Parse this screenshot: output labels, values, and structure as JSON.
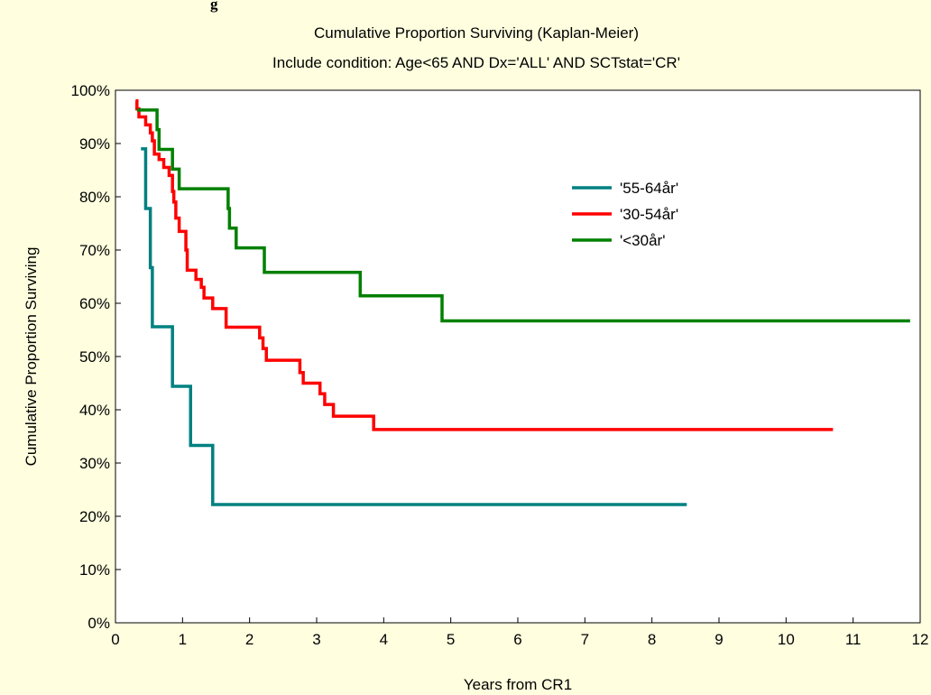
{
  "header_fragment": "g",
  "chart_data": {
    "type": "line",
    "title": "Cumulative Proportion Surviving (Kaplan-Meier)",
    "subtitle": "Include condition: Age<65 AND Dx='ALL' AND SCTstat='CR'",
    "xlabel": "Years from CR1",
    "ylabel": "Cumulative Proportion Surviving",
    "xlim": [
      0,
      12
    ],
    "ylim": [
      0,
      100
    ],
    "x_ticks": [
      "0",
      "1",
      "2",
      "3",
      "4",
      "5",
      "6",
      "7",
      "8",
      "9",
      "10",
      "11",
      "12"
    ],
    "y_ticks": [
      "0%",
      "10%",
      "20%",
      "30%",
      "40%",
      "50%",
      "60%",
      "70%",
      "80%",
      "90%",
      "100%"
    ],
    "grid": false,
    "legend_position": "upper-right",
    "step": true,
    "series": [
      {
        "name": "'55-64år'",
        "color": "#008080",
        "points": [
          [
            0.38,
            89
          ],
          [
            0.45,
            77.8
          ],
          [
            0.52,
            66.7
          ],
          [
            0.55,
            55.6
          ],
          [
            0.85,
            44.4
          ],
          [
            1.12,
            33.3
          ],
          [
            1.45,
            22.2
          ],
          [
            8.52,
            22.2
          ]
        ]
      },
      {
        "name": "'30-54år'",
        "color": "#ff0000",
        "points": [
          [
            0.3,
            98
          ],
          [
            0.32,
            96.5
          ],
          [
            0.35,
            95
          ],
          [
            0.45,
            93.5
          ],
          [
            0.52,
            92
          ],
          [
            0.55,
            90.5
          ],
          [
            0.58,
            88
          ],
          [
            0.65,
            87
          ],
          [
            0.72,
            85.5
          ],
          [
            0.8,
            84
          ],
          [
            0.85,
            81
          ],
          [
            0.87,
            79
          ],
          [
            0.9,
            76
          ],
          [
            0.95,
            73.5
          ],
          [
            1.05,
            70
          ],
          [
            1.07,
            66.2
          ],
          [
            1.2,
            64.5
          ],
          [
            1.28,
            63
          ],
          [
            1.32,
            61
          ],
          [
            1.45,
            59
          ],
          [
            1.65,
            55.5
          ],
          [
            2.15,
            53.5
          ],
          [
            2.2,
            51.5
          ],
          [
            2.25,
            49.3
          ],
          [
            2.75,
            47
          ],
          [
            2.8,
            45
          ],
          [
            3.05,
            43
          ],
          [
            3.12,
            41
          ],
          [
            3.25,
            38.8
          ],
          [
            3.85,
            36.3
          ],
          [
            10.7,
            36.3
          ]
        ]
      },
      {
        "name": "'<30år'",
        "color": "#008000",
        "points": [
          [
            0.32,
            96.3
          ],
          [
            0.62,
            92.6
          ],
          [
            0.65,
            88.9
          ],
          [
            0.85,
            85.2
          ],
          [
            0.95,
            81.5
          ],
          [
            1.68,
            77.8
          ],
          [
            1.7,
            74.1
          ],
          [
            1.8,
            70.4
          ],
          [
            2.22,
            65.8
          ],
          [
            3.65,
            61.4
          ],
          [
            4.87,
            56.7
          ],
          [
            11.85,
            56.7
          ]
        ]
      }
    ]
  }
}
